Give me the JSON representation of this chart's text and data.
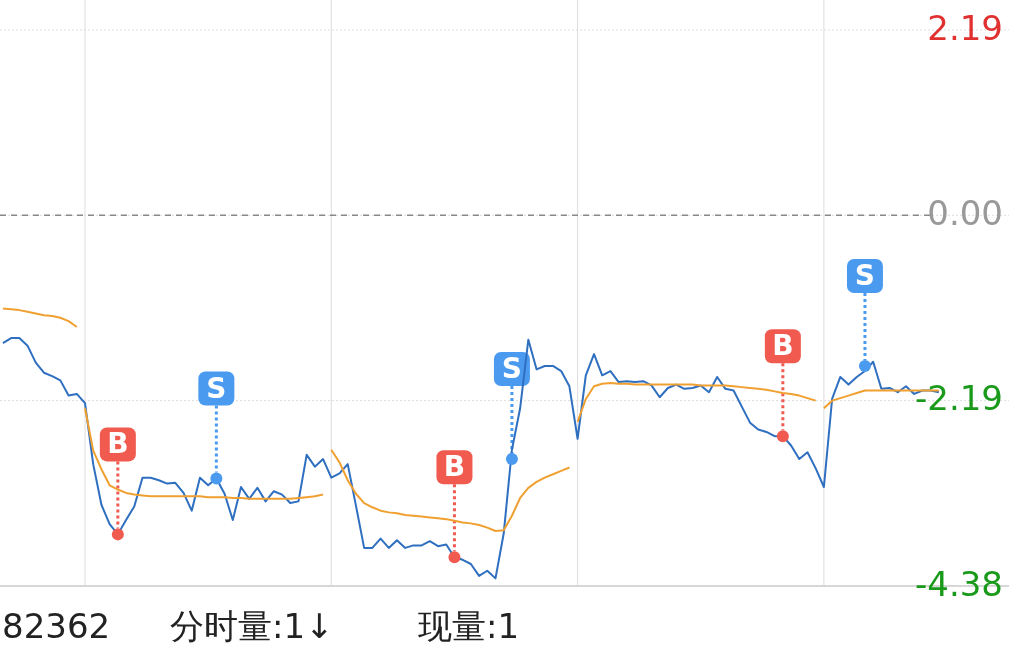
{
  "chart_data": {
    "type": "line",
    "categories": [
      null,
      null,
      null,
      null,
      null,
      null,
      null,
      null,
      null,
      null,
      null,
      null,
      null,
      null,
      null,
      null,
      null,
      null,
      null,
      null,
      null,
      null,
      null,
      null,
      null,
      null,
      null,
      null,
      null,
      null,
      null,
      null,
      null,
      null,
      null,
      null,
      null,
      null,
      null,
      null,
      null,
      null,
      null,
      null,
      null,
      null,
      null,
      null,
      null,
      null,
      null,
      null,
      null,
      null,
      null,
      null,
      null,
      null,
      null,
      null,
      null,
      null,
      null,
      null,
      null,
      null,
      null,
      null,
      null,
      null,
      null,
      null,
      null,
      null,
      null,
      null,
      null,
      null,
      null,
      null,
      null,
      null,
      null,
      null,
      null,
      null,
      null,
      null,
      null,
      null,
      null,
      null,
      null,
      null,
      null,
      null,
      null,
      null,
      null,
      null,
      null,
      null,
      null,
      null,
      null,
      null,
      null,
      null,
      null,
      null,
      null,
      null,
      null,
      null,
      null
    ],
    "ylim": [
      -4.38,
      2.19
    ],
    "yticks": [
      2.19,
      {
        "value": 0,
        "label": "0.00"
      },
      -2.19,
      -4.38
    ],
    "tick_labels": "y",
    "grid": true,
    "line_style": "solid",
    "ref_lines": [
      {
        "axis": "y",
        "value": 0,
        "color": "#888888",
        "line_style": "dashed"
      }
    ],
    "series": [
      {
        "color": "#2f6fc0",
        "values": [
          -1.51,
          -1.45,
          -1.45,
          -1.54,
          -1.74,
          -1.86,
          -1.9,
          -1.95,
          -2.13,
          -2.11,
          -2.22,
          -2.94,
          -3.42,
          -3.65,
          -3.77,
          -3.6,
          -3.44,
          -3.1,
          -3.1,
          -3.13,
          -3.17,
          -3.16,
          -3.28,
          -3.49,
          -3.1,
          -3.19,
          -3.11,
          -3.29,
          -3.6,
          -3.21,
          -3.35,
          -3.22,
          -3.38,
          -3.26,
          -3.3,
          -3.4,
          -3.38,
          -2.83,
          -2.97,
          -2.88,
          -3.1,
          -3.05,
          -2.94,
          -3.43,
          -3.93,
          -3.93,
          -3.82,
          -3.93,
          -3.84,
          -3.93,
          -3.9,
          -3.9,
          -3.85,
          -3.91,
          -3.89,
          -4.04,
          -4.07,
          -4.12,
          -4.26,
          -4.2,
          -4.29,
          -3.76,
          -2.77,
          -2.28,
          -1.47,
          -1.82,
          -1.78,
          -1.78,
          -1.84,
          -2.02,
          -2.64,
          -1.89,
          -1.64,
          -1.89,
          -1.84,
          -1.97,
          -1.96,
          -1.97,
          -1.96,
          -2.01,
          -2.15,
          -2.04,
          -2.0,
          -2.05,
          -2.04,
          -2.01,
          -2.09,
          -1.91,
          -2.05,
          -2.07,
          -2.26,
          -2.45,
          -2.53,
          -2.56,
          -2.61,
          -2.61,
          -2.72,
          -2.88,
          -2.8,
          -2.99,
          -3.21,
          -2.17,
          -1.91,
          -2.0,
          -1.91,
          -1.84,
          -1.73,
          -2.05,
          -2.04,
          -2.09,
          -2.02,
          -2.11,
          -2.07,
          -2.07,
          -2.09
        ]
      },
      {
        "color": "#f0a030",
        "values": [
          -1.1,
          -1.11,
          -1.12,
          -1.14,
          -1.16,
          -1.18,
          -1.19,
          -1.21,
          -1.25,
          -1.32,
          null,
          null,
          null,
          null,
          null,
          null,
          null,
          null,
          null,
          null,
          null,
          null,
          null,
          null,
          null,
          null,
          null,
          null,
          null,
          null,
          null,
          null,
          null,
          null,
          null,
          null,
          null,
          null,
          null,
          null,
          null,
          null,
          null,
          null,
          null,
          null,
          null,
          null,
          null,
          null,
          null,
          null,
          null,
          null,
          null,
          null,
          null,
          null,
          null,
          null,
          null,
          null,
          null,
          null,
          null,
          null,
          null,
          null,
          null,
          null,
          null,
          null,
          null,
          null,
          null,
          null,
          null,
          null,
          null,
          null,
          null,
          null,
          null,
          null,
          null,
          null,
          null,
          null,
          null,
          null,
          null,
          null,
          null,
          null,
          null,
          null,
          null,
          null,
          null,
          null,
          null,
          null,
          null,
          null,
          null,
          null,
          null,
          null,
          null,
          null,
          null,
          null,
          null,
          null,
          null
        ]
      },
      {
        "color": "#f0a030",
        "values": [
          null,
          null,
          null,
          null,
          null,
          null,
          null,
          null,
          null,
          null,
          -2.28,
          -2.78,
          -3.0,
          -3.19,
          -3.24,
          -3.28,
          -3.3,
          -3.31,
          -3.32,
          -3.32,
          -3.32,
          -3.32,
          -3.32,
          -3.32,
          -3.32,
          -3.33,
          -3.33,
          -3.33,
          -3.34,
          -3.34,
          -3.35,
          -3.35,
          -3.35,
          -3.35,
          -3.35,
          -3.35,
          -3.34,
          -3.33,
          -3.32,
          -3.3,
          null,
          null,
          null,
          null,
          null,
          null,
          null,
          null,
          null,
          null,
          null,
          null,
          null,
          null,
          null,
          null,
          null,
          null,
          null,
          null,
          null,
          null,
          null,
          null,
          null,
          null,
          null,
          null,
          null,
          null,
          null,
          null,
          null,
          null,
          null,
          null,
          null,
          null,
          null,
          null,
          null,
          null,
          null,
          null,
          null,
          null,
          null,
          null,
          null,
          null,
          null,
          null,
          null,
          null,
          null,
          null,
          null,
          null,
          null,
          null,
          null,
          null,
          null,
          null,
          null,
          null,
          null,
          null,
          null,
          null,
          null,
          null,
          null,
          null,
          null
        ]
      },
      {
        "color": "#f0a030",
        "values": [
          null,
          null,
          null,
          null,
          null,
          null,
          null,
          null,
          null,
          null,
          null,
          null,
          null,
          null,
          null,
          null,
          null,
          null,
          null,
          null,
          null,
          null,
          null,
          null,
          null,
          null,
          null,
          null,
          null,
          null,
          null,
          null,
          null,
          null,
          null,
          null,
          null,
          null,
          null,
          null,
          -2.77,
          -2.92,
          -3.13,
          -3.29,
          -3.4,
          -3.45,
          -3.49,
          -3.51,
          -3.52,
          -3.54,
          -3.55,
          -3.56,
          -3.57,
          -3.58,
          -3.59,
          -3.61,
          -3.63,
          -3.64,
          -3.66,
          -3.69,
          -3.73,
          -3.72,
          -3.55,
          -3.34,
          -3.22,
          -3.15,
          -3.1,
          -3.06,
          -3.02,
          -2.98,
          null,
          null,
          null,
          null,
          null,
          null,
          null,
          null,
          null,
          null,
          null,
          null,
          null,
          null,
          null,
          null,
          null,
          null,
          null,
          null,
          null,
          null,
          null,
          null,
          null,
          null,
          null,
          null,
          null,
          null,
          null,
          null,
          null,
          null,
          null,
          null,
          null,
          null,
          null,
          null,
          null,
          null,
          null,
          null,
          null
        ]
      },
      {
        "color": "#f0a030",
        "values": [
          null,
          null,
          null,
          null,
          null,
          null,
          null,
          null,
          null,
          null,
          null,
          null,
          null,
          null,
          null,
          null,
          null,
          null,
          null,
          null,
          null,
          null,
          null,
          null,
          null,
          null,
          null,
          null,
          null,
          null,
          null,
          null,
          null,
          null,
          null,
          null,
          null,
          null,
          null,
          null,
          null,
          null,
          null,
          null,
          null,
          null,
          null,
          null,
          null,
          null,
          null,
          null,
          null,
          null,
          null,
          null,
          null,
          null,
          null,
          null,
          null,
          null,
          null,
          null,
          null,
          null,
          null,
          null,
          null,
          null,
          -2.44,
          -2.17,
          -2.02,
          -1.99,
          -1.98,
          -1.99,
          -1.99,
          -2.0,
          -2.0,
          -2.0,
          -2.0,
          -2.0,
          -2.0,
          -2.0,
          -2.0,
          -2.01,
          -2.01,
          -2.01,
          -2.01,
          -2.02,
          -2.03,
          -2.04,
          -2.05,
          -2.06,
          -2.08,
          -2.1,
          -2.11,
          -2.13,
          -2.16,
          -2.19,
          null,
          null,
          null,
          null,
          null,
          null,
          null,
          null,
          null,
          null,
          null,
          null,
          null,
          null,
          null
        ]
      },
      {
        "color": "#f0a030",
        "values": [
          null,
          null,
          null,
          null,
          null,
          null,
          null,
          null,
          null,
          null,
          null,
          null,
          null,
          null,
          null,
          null,
          null,
          null,
          null,
          null,
          null,
          null,
          null,
          null,
          null,
          null,
          null,
          null,
          null,
          null,
          null,
          null,
          null,
          null,
          null,
          null,
          null,
          null,
          null,
          null,
          null,
          null,
          null,
          null,
          null,
          null,
          null,
          null,
          null,
          null,
          null,
          null,
          null,
          null,
          null,
          null,
          null,
          null,
          null,
          null,
          null,
          null,
          null,
          null,
          null,
          null,
          null,
          null,
          null,
          null,
          null,
          null,
          null,
          null,
          null,
          null,
          null,
          null,
          null,
          null,
          null,
          null,
          null,
          null,
          null,
          null,
          null,
          null,
          null,
          null,
          null,
          null,
          null,
          null,
          null,
          null,
          null,
          null,
          null,
          null,
          -2.28,
          -2.19,
          -2.16,
          -2.13,
          -2.1,
          -2.07,
          -2.07,
          -2.07,
          -2.07,
          -2.07,
          -2.07,
          -2.07,
          -2.07,
          -2.07,
          -2.07
        ]
      },
      {
        "type": "scatter",
        "marker": "circle",
        "color": "#f05a4f",
        "values": [
          null,
          null,
          null,
          null,
          null,
          null,
          null,
          null,
          null,
          null,
          null,
          null,
          null,
          null,
          -3.77,
          null,
          null,
          null,
          null,
          null,
          null,
          null,
          null,
          null,
          null,
          null,
          null,
          null,
          null,
          null,
          null,
          null,
          null,
          null,
          null,
          null,
          null,
          null,
          null,
          null,
          null,
          null,
          null,
          null,
          null,
          null,
          null,
          null,
          null,
          null,
          null,
          null,
          null,
          null,
          null,
          -4.04,
          null,
          null,
          null,
          null,
          null,
          null,
          null,
          null,
          null,
          null,
          null,
          null,
          null,
          null,
          null,
          null,
          null,
          null,
          null,
          null,
          null,
          null,
          null,
          null,
          null,
          null,
          null,
          null,
          null,
          null,
          null,
          null,
          null,
          null,
          null,
          null,
          null,
          null,
          null,
          -2.61,
          null,
          null,
          null,
          null,
          null,
          null,
          null,
          null,
          null,
          null,
          null,
          null,
          null,
          null,
          null,
          null,
          null,
          null,
          null
        ],
        "value_labels": [
          null,
          null,
          null,
          null,
          null,
          null,
          null,
          null,
          null,
          null,
          null,
          null,
          null,
          null,
          "B",
          null,
          null,
          null,
          null,
          null,
          null,
          null,
          null,
          null,
          null,
          null,
          null,
          null,
          null,
          null,
          null,
          null,
          null,
          null,
          null,
          null,
          null,
          null,
          null,
          null,
          null,
          null,
          null,
          null,
          null,
          null,
          null,
          null,
          null,
          null,
          null,
          null,
          null,
          null,
          null,
          "B",
          null,
          null,
          null,
          null,
          null,
          null,
          null,
          null,
          null,
          null,
          null,
          null,
          null,
          null,
          null,
          null,
          null,
          null,
          null,
          null,
          null,
          null,
          null,
          null,
          null,
          null,
          null,
          null,
          null,
          null,
          null,
          null,
          null,
          null,
          null,
          null,
          null,
          null,
          null,
          "B",
          null,
          null,
          null,
          null,
          null,
          null,
          null,
          null,
          null,
          null,
          null,
          null,
          null,
          null,
          null,
          null,
          null,
          null,
          null
        ]
      },
      {
        "type": "scatter",
        "marker": "circle",
        "color": "#4a9af0",
        "values": [
          null,
          null,
          null,
          null,
          null,
          null,
          null,
          null,
          null,
          null,
          null,
          null,
          null,
          null,
          null,
          null,
          null,
          null,
          null,
          null,
          null,
          null,
          null,
          null,
          null,
          null,
          -3.11,
          null,
          null,
          null,
          null,
          null,
          null,
          null,
          null,
          null,
          null,
          null,
          null,
          null,
          null,
          null,
          null,
          null,
          null,
          null,
          null,
          null,
          null,
          null,
          null,
          null,
          null,
          null,
          null,
          null,
          null,
          null,
          null,
          null,
          null,
          null,
          -2.88,
          null,
          null,
          null,
          null,
          null,
          null,
          null,
          null,
          null,
          null,
          null,
          null,
          null,
          null,
          null,
          null,
          null,
          null,
          null,
          null,
          null,
          null,
          null,
          null,
          null,
          null,
          null,
          null,
          null,
          null,
          null,
          null,
          null,
          null,
          null,
          null,
          null,
          null,
          null,
          null,
          null,
          null,
          -1.78,
          null,
          null,
          null,
          null,
          null,
          null,
          null,
          null,
          null
        ],
        "value_labels": [
          null,
          null,
          null,
          null,
          null,
          null,
          null,
          null,
          null,
          null,
          null,
          null,
          null,
          null,
          null,
          null,
          null,
          null,
          null,
          null,
          null,
          null,
          null,
          null,
          null,
          null,
          "S",
          null,
          null,
          null,
          null,
          null,
          null,
          null,
          null,
          null,
          null,
          null,
          null,
          null,
          null,
          null,
          null,
          null,
          null,
          null,
          null,
          null,
          null,
          null,
          null,
          null,
          null,
          null,
          null,
          null,
          null,
          null,
          null,
          null,
          null,
          null,
          "S",
          null,
          null,
          null,
          null,
          null,
          null,
          null,
          null,
          null,
          null,
          null,
          null,
          null,
          null,
          null,
          null,
          null,
          null,
          null,
          null,
          null,
          null,
          null,
          null,
          null,
          null,
          null,
          null,
          null,
          null,
          null,
          null,
          null,
          null,
          null,
          null,
          null,
          null,
          null,
          null,
          null,
          null,
          "S",
          null,
          null,
          null,
          null,
          null,
          null,
          null,
          null,
          null
        ]
      }
    ],
    "annotations": [
      "82362",
      "分时量:1↓",
      "现量:1"
    ]
  }
}
